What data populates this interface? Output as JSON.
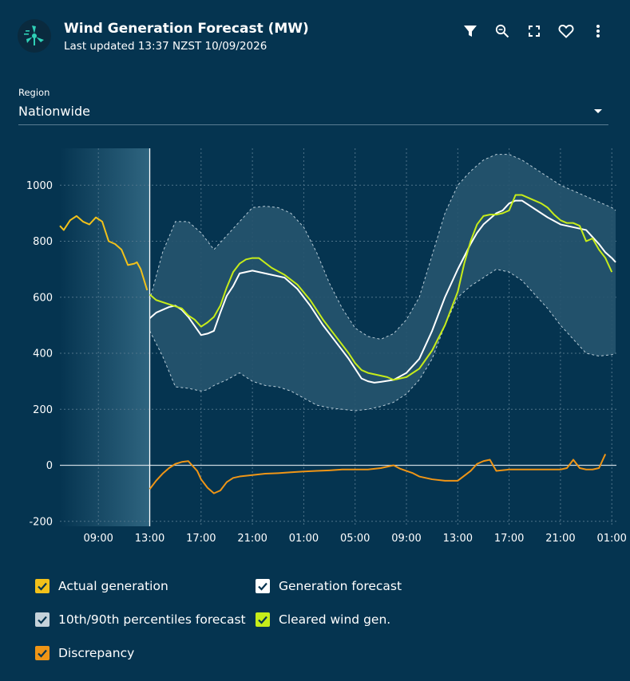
{
  "header": {
    "title": "Wind Generation Forecast (MW)",
    "subtitle": "Last updated 13:37 NZST 10/09/2026",
    "icons": [
      "wind-turbine-icon",
      "filter-icon",
      "zoom-icon",
      "fullscreen-icon",
      "heart-icon",
      "more-vert-icon"
    ]
  },
  "region": {
    "label": "Region",
    "value": "Nationwide"
  },
  "colors": {
    "background": "#053450",
    "actual": "#f2c11a",
    "forecast": "#ffffff",
    "percentile_band": "#26546e",
    "cleared": "#c6ec1a",
    "discrepancy": "#ef9516",
    "past_shade": "#2f6580"
  },
  "chart_data": {
    "type": "line",
    "title": "Wind Generation Forecast (MW)",
    "xlabel": "",
    "ylabel": "",
    "x_unit": "hours since 06:00 day 1",
    "now_x": 7,
    "xlim": [
      0,
      43.3
    ],
    "ylim": [
      -220,
      1130
    ],
    "grid": true,
    "y_ticks": [
      -200,
      0,
      200,
      400,
      600,
      800,
      1000
    ],
    "x_tick_labels": [
      "09:00",
      "13:00",
      "17:00",
      "21:00",
      "01:00",
      "05:00",
      "09:00",
      "13:00",
      "17:00",
      "21:00",
      "01:00"
    ],
    "x_tick_positions": [
      3,
      7,
      11,
      15,
      19,
      23,
      27,
      31,
      35,
      39,
      43
    ],
    "series": [
      {
        "name": "Actual generation",
        "x": [
          0,
          0.3,
          0.8,
          1.3,
          1.8,
          2.3,
          2.8,
          3.3,
          3.8,
          4.3,
          4.8,
          5.3,
          5.8,
          6.0,
          6.3,
          6.8
        ],
        "y": [
          855,
          840,
          875,
          890,
          870,
          860,
          885,
          870,
          800,
          790,
          770,
          715,
          720,
          725,
          700,
          625
        ]
      },
      {
        "name": "Generation forecast",
        "x": [
          7.0,
          7.5,
          8.5,
          9.0,
          9.5,
          10.0,
          11.0,
          11.5,
          12.0,
          12.5,
          13.0,
          13.5,
          14.0,
          14.5,
          15.0,
          15.5,
          16.5,
          17.5,
          18.5,
          19.5,
          20.5,
          21.5,
          22.5,
          23.0,
          23.5,
          24.0,
          24.5,
          25.0,
          26.0,
          27.0,
          28.0,
          29.0,
          30.0,
          31.0,
          32.0,
          32.5,
          33.0,
          33.5,
          34.0,
          34.5,
          35.0,
          35.5,
          36.0,
          36.5,
          37.0,
          38.0,
          39.0,
          40.0,
          41.0,
          42.0,
          42.5,
          43.0,
          43.3
        ],
        "y": [
          525,
          545,
          565,
          570,
          555,
          530,
          465,
          470,
          480,
          545,
          605,
          640,
          685,
          690,
          695,
          690,
          680,
          670,
          630,
          570,
          500,
          440,
          380,
          345,
          310,
          300,
          295,
          298,
          305,
          330,
          380,
          480,
          600,
          700,
          790,
          830,
          860,
          880,
          900,
          910,
          935,
          945,
          945,
          930,
          915,
          885,
          860,
          850,
          840,
          790,
          760,
          740,
          725
        ]
      },
      {
        "name": "Cleared wind gen.",
        "x": [
          7.0,
          7.5,
          8.5,
          9.5,
          10.0,
          10.5,
          11.0,
          11.5,
          12.0,
          12.5,
          13.0,
          13.5,
          14.0,
          14.5,
          15.0,
          15.5,
          16.5,
          17.5,
          18.5,
          19.5,
          20.5,
          21.5,
          22.5,
          23.0,
          23.5,
          24.0,
          24.5,
          25.0,
          25.5,
          26.0,
          27.0,
          28.0,
          29.0,
          30.0,
          31.0,
          31.5,
          32.0,
          32.5,
          33.0,
          33.5,
          34.0,
          34.5,
          35.0,
          35.5,
          36.0,
          36.5,
          37.0,
          37.5,
          38.0,
          38.5,
          39.0,
          39.5,
          40.0,
          40.5,
          41.0,
          41.5,
          42.0,
          42.5,
          43.0
        ],
        "y": [
          610,
          590,
          575,
          560,
          535,
          520,
          495,
          510,
          530,
          570,
          635,
          690,
          720,
          735,
          740,
          740,
          705,
          680,
          645,
          590,
          520,
          460,
          400,
          365,
          340,
          330,
          325,
          320,
          315,
          305,
          315,
          345,
          410,
          500,
          620,
          720,
          800,
          860,
          890,
          895,
          895,
          900,
          910,
          965,
          965,
          955,
          945,
          935,
          920,
          895,
          875,
          865,
          865,
          855,
          800,
          810,
          770,
          740,
          690
        ]
      },
      {
        "name": "10th/90th percentiles forecast",
        "x": [
          7,
          8,
          9,
          10,
          11,
          11.5,
          12,
          13,
          14,
          15,
          16,
          17,
          18,
          19,
          20,
          21,
          22,
          23,
          24,
          25,
          26,
          27,
          28,
          29,
          30,
          31,
          32,
          33,
          34,
          35,
          36,
          37,
          38,
          39,
          40,
          41,
          42,
          43,
          43.3
        ],
        "upper": [
          590,
          760,
          870,
          870,
          830,
          800,
          770,
          820,
          870,
          920,
          925,
          920,
          900,
          850,
          760,
          650,
          560,
          490,
          460,
          450,
          470,
          520,
          600,
          750,
          900,
          1000,
          1050,
          1090,
          1110,
          1110,
          1090,
          1060,
          1030,
          1000,
          980,
          960,
          940,
          920,
          910
        ],
        "lower": [
          480,
          390,
          280,
          275,
          265,
          270,
          285,
          305,
          330,
          300,
          285,
          280,
          265,
          240,
          215,
          205,
          200,
          195,
          200,
          210,
          225,
          255,
          305,
          380,
          500,
          600,
          640,
          670,
          700,
          690,
          660,
          610,
          560,
          500,
          450,
          400,
          390,
          395,
          400
        ]
      },
      {
        "name": "Discrepancy",
        "x": [
          7.0,
          7.5,
          8.0,
          8.5,
          9.0,
          9.5,
          10.0,
          10.3,
          10.7,
          11.0,
          11.5,
          12.0,
          12.5,
          13.0,
          13.5,
          14.0,
          15.0,
          16.0,
          17.0,
          18.0,
          19.0,
          20.0,
          21.0,
          22.0,
          23.0,
          24.0,
          25.0,
          26.0,
          26.5,
          27.0,
          27.5,
          28.0,
          29.0,
          30.0,
          31.0,
          32.0,
          32.5,
          33.0,
          33.5,
          34.0,
          35.0,
          36.0,
          37.0,
          38.0,
          39.0,
          39.5,
          40.0,
          40.5,
          41.0,
          41.5,
          42.0,
          42.5
        ],
        "y": [
          -85,
          -55,
          -30,
          -10,
          5,
          12,
          15,
          0,
          -20,
          -50,
          -80,
          -100,
          -90,
          -60,
          -45,
          -40,
          -35,
          -30,
          -28,
          -25,
          -22,
          -20,
          -18,
          -15,
          -15,
          -15,
          -10,
          0,
          -12,
          -20,
          -28,
          -40,
          -50,
          -55,
          -55,
          -20,
          5,
          15,
          20,
          -20,
          -15,
          -15,
          -15,
          -15,
          -15,
          -10,
          20,
          -10,
          -15,
          -15,
          -10,
          40
        ]
      }
    ],
    "axis_labels": {
      "y": [
        "-200",
        "0",
        "200",
        "400",
        "600",
        "800",
        "1000"
      ]
    }
  },
  "legend": {
    "items": [
      {
        "label": "Actual generation",
        "color": "#f2c11a",
        "checked": true
      },
      {
        "label": "Generation forecast",
        "color": "#ffffff",
        "checked": true
      },
      {
        "label": "10th/90th percentiles forecast",
        "color": "#c5d2da",
        "checked": true
      },
      {
        "label": "Cleared wind gen.",
        "color": "#c6ec1a",
        "checked": true
      },
      {
        "label": "Discrepancy",
        "color": "#ef9516",
        "checked": true
      }
    ]
  }
}
